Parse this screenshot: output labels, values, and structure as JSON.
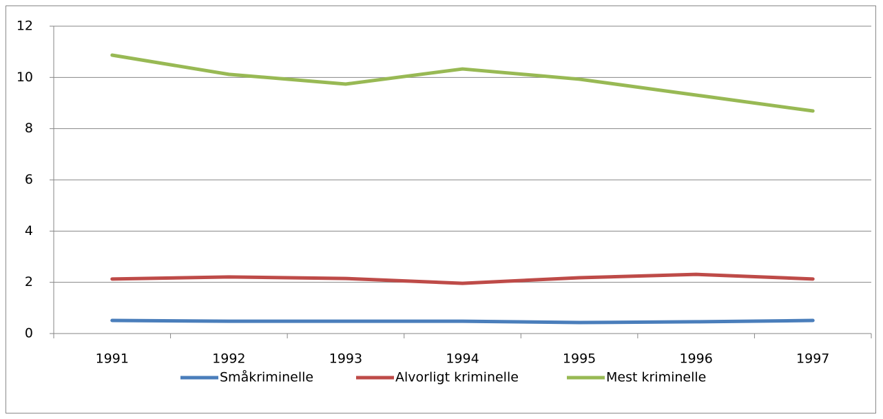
{
  "chart_data": {
    "type": "line",
    "categories": [
      "1991",
      "1992",
      "1993",
      "1994",
      "1995",
      "1996",
      "1997"
    ],
    "series": [
      {
        "name": "Småkriminelle",
        "color": "#4a7ebb",
        "values": [
          0.51,
          0.48,
          0.48,
          0.48,
          0.43,
          0.46,
          0.51
        ]
      },
      {
        "name": "Alvorligt kriminelle",
        "color": "#be4b48",
        "values": [
          2.13,
          2.21,
          2.15,
          1.96,
          2.18,
          2.31,
          2.13
        ]
      },
      {
        "name": "Mest kriminelle",
        "color": "#98b954",
        "values": [
          10.87,
          10.12,
          9.74,
          10.33,
          9.93,
          9.31,
          8.69
        ]
      }
    ],
    "ylim": [
      0,
      12
    ],
    "yticks": [
      0,
      2,
      4,
      6,
      8,
      10,
      12
    ],
    "grid": true,
    "legend": "bottom"
  }
}
